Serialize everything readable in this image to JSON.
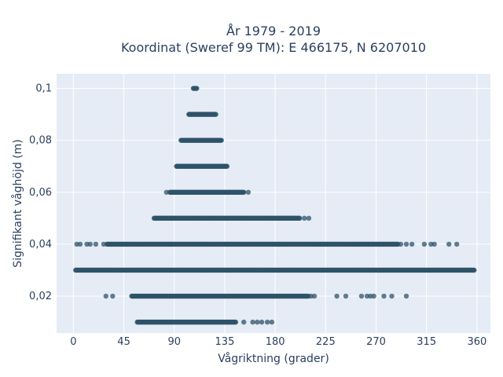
{
  "chart_data": {
    "type": "scatter",
    "title_lines": [
      "År 1979 - 2019",
      "Koordinat (Sweref 99 TM): E 466175, N 6207010"
    ],
    "xlabel": "Vågriktning (grader)",
    "ylabel": "Signifikant våghöjd (m)",
    "xlim": [
      -15,
      372
    ],
    "ylim": [
      0.0058,
      0.1056
    ],
    "x_ticks": [
      0,
      45,
      90,
      135,
      180,
      225,
      270,
      315,
      360
    ],
    "x_tick_labels": [
      "0",
      "45",
      "90",
      "135",
      "180",
      "225",
      "270",
      "315",
      "360"
    ],
    "y_ticks": [
      0.02,
      0.04,
      0.06,
      0.08,
      0.1
    ],
    "y_tick_labels": [
      "0,02",
      "0,04",
      "0,06",
      "0,08",
      "0,1"
    ],
    "grid": true,
    "marker_color": "#2f5369",
    "plot_background": "#e5ecf6",
    "series": [
      {
        "y": 0.01,
        "dense_ranges": [
          [
            57,
            145
          ]
        ],
        "outliers": [
          152,
          160,
          164,
          168,
          173,
          177
        ]
      },
      {
        "y": 0.02,
        "dense_ranges": [
          [
            52,
            210
          ]
        ],
        "outliers": [
          29,
          35,
          212,
          215,
          235,
          243,
          257,
          262,
          265,
          268,
          277,
          284,
          297
        ]
      },
      {
        "y": 0.03,
        "dense_ranges": [
          [
            2,
            358
          ]
        ],
        "outliers": []
      },
      {
        "y": 0.04,
        "dense_ranges": [
          [
            30,
            290
          ]
        ],
        "outliers": [
          3,
          6,
          12,
          15,
          20,
          27,
          292,
          297,
          302,
          313,
          319,
          322,
          335,
          342
        ]
      },
      {
        "y": 0.05,
        "dense_ranges": [
          [
            72,
            202
          ]
        ],
        "outliers": [
          206,
          210
        ]
      },
      {
        "y": 0.06,
        "dense_ranges": [
          [
            86,
            152
          ]
        ],
        "outliers": [
          83,
          156
        ]
      },
      {
        "y": 0.07,
        "dense_ranges": [
          [
            92,
            137
          ]
        ],
        "outliers": []
      },
      {
        "y": 0.08,
        "dense_ranges": [
          [
            96,
            132
          ]
        ],
        "outliers": []
      },
      {
        "y": 0.09,
        "dense_ranges": [
          [
            103,
            127
          ]
        ],
        "outliers": []
      },
      {
        "y": 0.1,
        "dense_ranges": [
          [
            107,
            110
          ]
        ],
        "outliers": []
      }
    ]
  }
}
